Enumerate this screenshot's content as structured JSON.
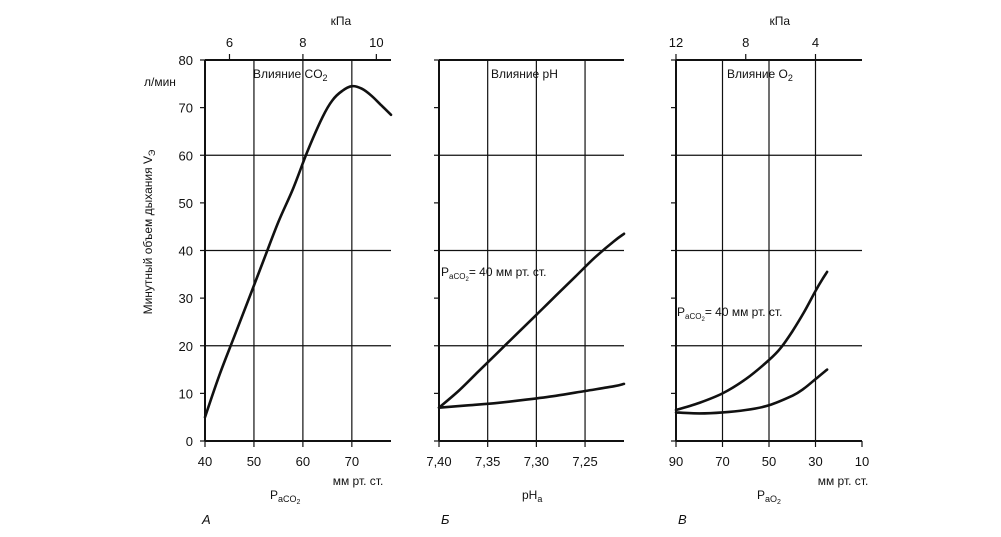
{
  "figure": {
    "ylabel": "Минутный объем дыхания  V",
    "ylabel_sub": "Э",
    "yunit": "л/мин",
    "ylim": [
      0,
      80
    ],
    "yticks": [
      "0",
      "10",
      "20",
      "30",
      "40",
      "50",
      "60",
      "70",
      "80"
    ]
  },
  "chart_data": [
    {
      "type": "line",
      "panel": "А",
      "title": "Влияние CO",
      "title_sub": "2",
      "xlabel_main": "P",
      "xlabel_sub": "aCO",
      "xlabel_subsub": "2",
      "x_unit": "мм рт. ст.",
      "xlim": [
        40,
        78
      ],
      "xticks": [
        40,
        50,
        60,
        70
      ],
      "top_axis_unit": "кПа",
      "top_ticks": [
        {
          "value": 6,
          "label": "6"
        },
        {
          "value": 8,
          "label": "8"
        },
        {
          "value": 10,
          "label": "10"
        }
      ],
      "series": [
        {
          "x": [
            40,
            43,
            46,
            49,
            52,
            55,
            58,
            61,
            64,
            66,
            68,
            70,
            72,
            74,
            76,
            78
          ],
          "y": [
            5,
            14,
            22,
            30,
            38,
            46,
            53,
            61,
            68,
            71.5,
            73.5,
            74.5,
            74,
            72.5,
            70.5,
            68.5
          ]
        }
      ]
    },
    {
      "type": "line",
      "panel": "Б",
      "title": "Влияние pH",
      "xlabel_main": "pH",
      "xlabel_sub": "a",
      "xlim": [
        7.4,
        7.21
      ],
      "xticks": [
        "7,40",
        "7,35",
        "7,30",
        "7,25"
      ],
      "xtick_values": [
        7.4,
        7.35,
        7.3,
        7.25
      ],
      "annotation": {
        "main": "P",
        "sub": "aCO",
        "subsub": "2",
        "rest": "= 40 мм рт. ст."
      },
      "series": [
        {
          "x": [
            7.4,
            7.38,
            7.36,
            7.34,
            7.32,
            7.3,
            7.28,
            7.26,
            7.24,
            7.22,
            7.21
          ],
          "y": [
            7,
            10.5,
            14.5,
            18.5,
            22.5,
            26.5,
            30.5,
            34.5,
            38.5,
            42,
            43.5
          ]
        },
        {
          "x": [
            7.4,
            7.37,
            7.34,
            7.31,
            7.28,
            7.25,
            7.22,
            7.21
          ],
          "y": [
            7,
            7.5,
            8,
            8.7,
            9.5,
            10.5,
            11.5,
            12
          ]
        }
      ]
    },
    {
      "type": "line",
      "panel": "В",
      "title": "Влияние O",
      "title_sub": "2",
      "xlabel_main": "P",
      "xlabel_sub": "aO",
      "xlabel_subsub": "2",
      "x_unit": "мм рт. ст.",
      "xlim": [
        90,
        10
      ],
      "xticks": [
        90,
        70,
        50,
        30,
        10
      ],
      "top_axis_unit": "кПа",
      "top_ticks": [
        {
          "value": 12,
          "label": "12"
        },
        {
          "value": 8,
          "label": "8"
        },
        {
          "value": 4,
          "label": "4"
        }
      ],
      "annotation": {
        "main": "P",
        "sub": "aCO",
        "subsub": "2",
        "rest": "= 40 мм рт. ст."
      },
      "series": [
        {
          "x": [
            90,
            80,
            70,
            60,
            50,
            45,
            40,
            35,
            30,
            27,
            25
          ],
          "y": [
            6.5,
            8,
            10,
            13,
            17,
            19.5,
            23,
            27,
            31.5,
            34,
            35.5
          ]
        },
        {
          "x": [
            90,
            80,
            70,
            60,
            50,
            40,
            35,
            30,
            25
          ],
          "y": [
            6,
            5.8,
            6,
            6.5,
            7.5,
            9.5,
            11,
            13,
            15
          ]
        }
      ]
    }
  ]
}
